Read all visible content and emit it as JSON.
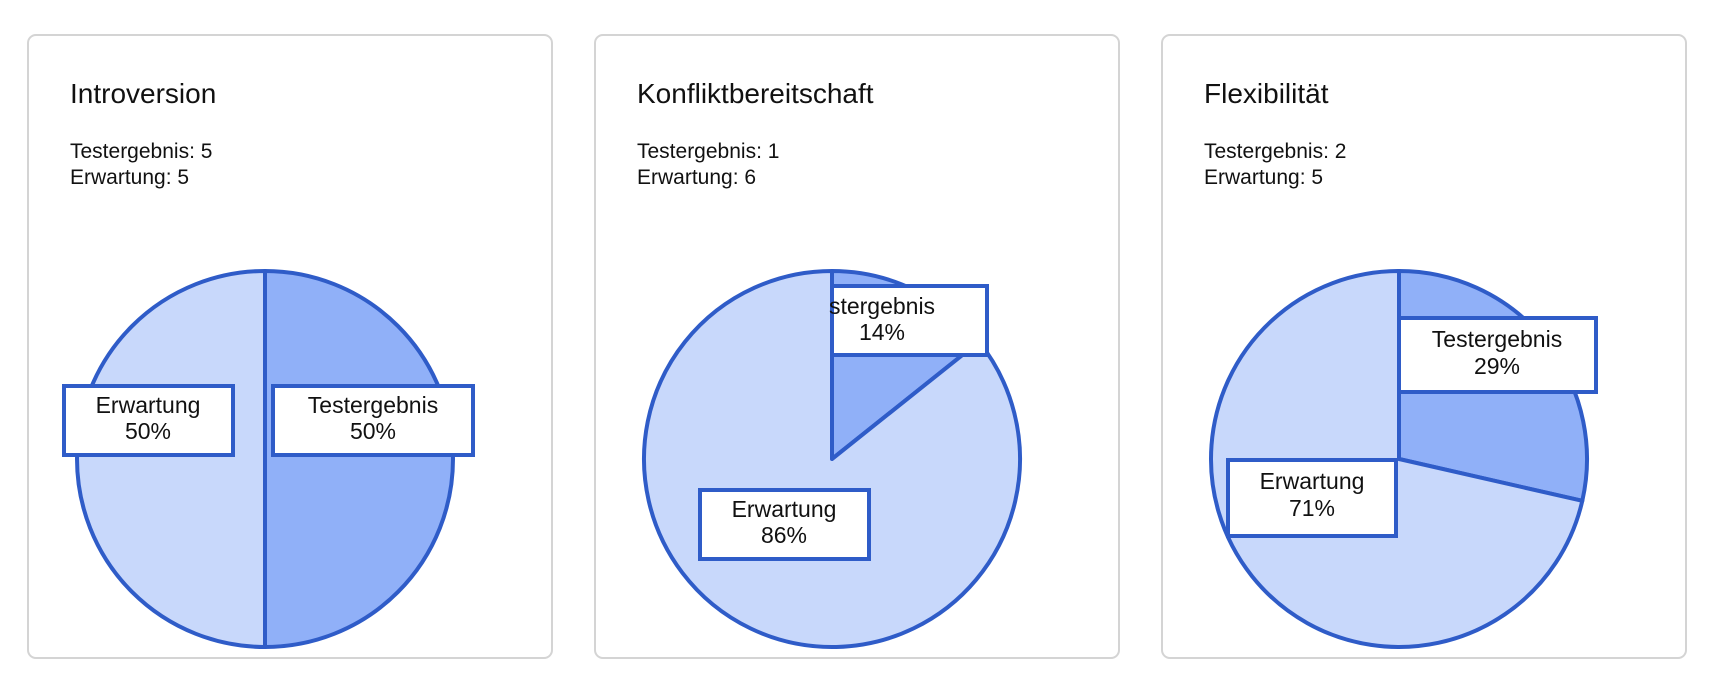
{
  "colors": {
    "testergebnis": "#90b0f8",
    "erwartung": "#c8d8fb",
    "stroke": "#2f5cc8",
    "card_border": "#d4d4d4"
  },
  "cards": [
    {
      "title": "Introversion",
      "stats": [
        "Testergebnis: 5",
        "Erwartung: 5"
      ],
      "labels": [
        {
          "name": "Testergebnis",
          "pct": "50%"
        },
        {
          "name": "Erwartung",
          "pct": "50%"
        }
      ]
    },
    {
      "title": "Konfliktbereitschaft",
      "stats": [
        "Testergebnis: 1",
        "Erwartung: 6"
      ],
      "labels": [
        {
          "name": "stergebnis",
          "pct": "14%"
        },
        {
          "name": "Erwartung",
          "pct": "86%"
        }
      ]
    },
    {
      "title": "Flexibilität",
      "stats": [
        "Testergebnis: 2",
        "Erwartung: 5"
      ],
      "labels": [
        {
          "name": "Testergebnis",
          "pct": "29%"
        },
        {
          "name": "Erwartung",
          "pct": "71%"
        }
      ]
    }
  ],
  "chart_data": [
    {
      "type": "pie",
      "title": "Introversion",
      "categories": [
        "Testergebnis",
        "Erwartung"
      ],
      "values": [
        5,
        5
      ],
      "percentages": [
        50,
        50
      ]
    },
    {
      "type": "pie",
      "title": "Konfliktbereitschaft",
      "categories": [
        "Testergebnis",
        "Erwartung"
      ],
      "values": [
        1,
        6
      ],
      "percentages": [
        14,
        86
      ]
    },
    {
      "type": "pie",
      "title": "Flexibilität",
      "categories": [
        "Testergebnis",
        "Erwartung"
      ],
      "values": [
        2,
        5
      ],
      "percentages": [
        29,
        71
      ]
    }
  ]
}
